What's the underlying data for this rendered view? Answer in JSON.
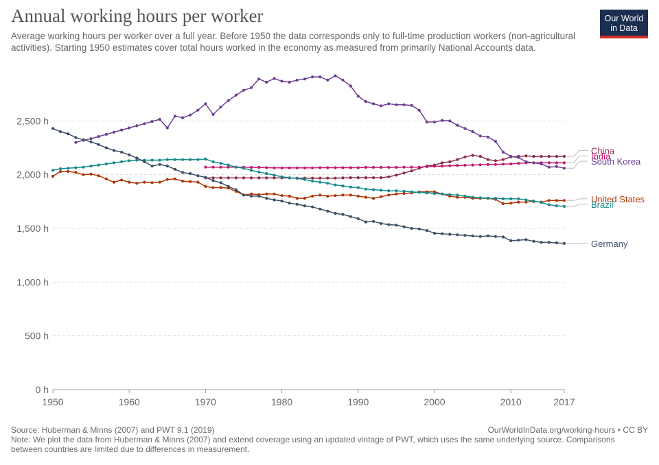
{
  "header": {
    "title": "Annual working hours per worker",
    "subtitle": "Average working hours per worker over a full year. Before 1950 the data corresponds only to full-time production workers (non-agricultural activities). Starting 1950 estimates cover total hours worked in the economy as measured from primarily National Accounts data.",
    "logo_line1": "Our World",
    "logo_line2": "in Data"
  },
  "footer": {
    "source": "Source: Huberman & Minns (2007) and PWT 9.1 (2019)",
    "url": "OurWorldInData.org/working-hours • CC BY",
    "note": "Note: We plot the data from Huberman & Minns (2007) and extend coverage using an updated vintage of PWT, which uses the same underlying source. Comparisons between countries are limited due to differences in measurement."
  },
  "colors": {
    "logo_bg": "#1a2e4f",
    "logo_accent": "#d12c2c"
  },
  "chart_data": {
    "type": "line",
    "title": "Annual working hours per worker",
    "xlim": [
      1950,
      2017
    ],
    "ylim": [
      0,
      3000
    ],
    "x_ticks": [
      1950,
      1960,
      1970,
      1980,
      1990,
      2000,
      2010,
      2017
    ],
    "x_tick_labels": [
      "1950",
      "1960",
      "1970",
      "1980",
      "1990",
      "2000",
      "2010",
      "2017"
    ],
    "y_ticks": [
      0,
      500,
      1000,
      1500,
      2000,
      2500
    ],
    "y_tick_labels": [
      "0 h",
      "500 h",
      "1,000 h",
      "1,500 h",
      "2,000 h",
      "2,500 h"
    ],
    "grid": "horizontal dashed",
    "legend": "right end labels",
    "series": [
      {
        "name": "China",
        "color": "#8c2c43",
        "start": 1970,
        "values": [
          1970,
          1970,
          1970,
          1970,
          1970,
          1970,
          1970,
          1970,
          1970,
          1970,
          1970,
          1970,
          1968,
          1968,
          1968,
          1968,
          1968,
          1968,
          1970,
          1972,
          1972,
          1972,
          1972,
          1972,
          1980,
          1995,
          2015,
          2035,
          2060,
          2080,
          2090,
          2110,
          2120,
          2140,
          2165,
          2180,
          2170,
          2140,
          2130,
          2140,
          2165,
          2170,
          2175,
          2170,
          2170,
          2170,
          2170,
          2170
        ]
      },
      {
        "name": "India",
        "color": "#c4156f",
        "start": 1970,
        "values": [
          2070,
          2070,
          2070,
          2070,
          2070,
          2070,
          2068,
          2068,
          2065,
          2063,
          2063,
          2063,
          2063,
          2063,
          2063,
          2065,
          2065,
          2065,
          2065,
          2065,
          2065,
          2068,
          2068,
          2068,
          2068,
          2068,
          2070,
          2070,
          2070,
          2075,
          2078,
          2080,
          2083,
          2085,
          2088,
          2090,
          2092,
          2095,
          2095,
          2098,
          2100,
          2105,
          2110,
          2110,
          2110,
          2110,
          2110,
          2110
        ]
      },
      {
        "name": "South Korea",
        "color": "#6d3e91",
        "start": 1953,
        "values": [
          2300,
          2320,
          2335,
          2355,
          2375,
          2395,
          2415,
          2435,
          2455,
          2475,
          2495,
          2515,
          2435,
          2545,
          2530,
          2555,
          2600,
          2660,
          2560,
          2630,
          2690,
          2740,
          2785,
          2810,
          2890,
          2860,
          2895,
          2870,
          2860,
          2880,
          2890,
          2910,
          2910,
          2880,
          2920,
          2880,
          2825,
          2730,
          2680,
          2660,
          2640,
          2660,
          2650,
          2650,
          2645,
          2600,
          2490,
          2490,
          2505,
          2500,
          2460,
          2430,
          2400,
          2360,
          2350,
          2310,
          2210,
          2170,
          2160,
          2120,
          2110,
          2100,
          2070,
          2075,
          2060
        ]
      },
      {
        "name": "United States",
        "color": "#b13507",
        "start": 1950,
        "values": [
          1985,
          2030,
          2030,
          2020,
          2000,
          2005,
          1990,
          1960,
          1930,
          1950,
          1930,
          1920,
          1930,
          1925,
          1930,
          1955,
          1960,
          1940,
          1935,
          1930,
          1890,
          1880,
          1880,
          1875,
          1845,
          1810,
          1820,
          1815,
          1820,
          1820,
          1805,
          1800,
          1780,
          1780,
          1800,
          1810,
          1800,
          1805,
          1810,
          1810,
          1800,
          1790,
          1780,
          1795,
          1810,
          1820,
          1825,
          1830,
          1840,
          1840,
          1840,
          1820,
          1800,
          1790,
          1790,
          1780,
          1780,
          1780,
          1770,
          1730,
          1735,
          1745,
          1745,
          1750,
          1745,
          1760,
          1760,
          1760
        ]
      },
      {
        "name": "Brazil",
        "color": "#158a8a",
        "start": 1950,
        "values": [
          2040,
          2055,
          2060,
          2065,
          2070,
          2080,
          2090,
          2100,
          2110,
          2120,
          2130,
          2135,
          2135,
          2135,
          2135,
          2140,
          2140,
          2140,
          2140,
          2140,
          2145,
          2120,
          2105,
          2090,
          2070,
          2060,
          2040,
          2025,
          2010,
          1995,
          1980,
          1970,
          1965,
          1955,
          1940,
          1930,
          1920,
          1905,
          1895,
          1885,
          1880,
          1865,
          1860,
          1855,
          1850,
          1850,
          1845,
          1840,
          1835,
          1830,
          1825,
          1820,
          1815,
          1810,
          1800,
          1790,
          1785,
          1780,
          1780,
          1775,
          1775,
          1775,
          1765,
          1755,
          1740,
          1720,
          1710,
          1705
        ]
      },
      {
        "name": "Germany",
        "color": "#3c4e66",
        "start": 1950,
        "values": [
          2430,
          2400,
          2380,
          2345,
          2325,
          2305,
          2280,
          2250,
          2225,
          2210,
          2185,
          2155,
          2120,
          2080,
          2095,
          2080,
          2050,
          2020,
          2010,
          1990,
          1975,
          1945,
          1925,
          1890,
          1860,
          1810,
          1800,
          1800,
          1780,
          1765,
          1755,
          1735,
          1725,
          1710,
          1700,
          1680,
          1660,
          1640,
          1630,
          1610,
          1590,
          1560,
          1565,
          1545,
          1535,
          1530,
          1515,
          1500,
          1495,
          1480,
          1455,
          1450,
          1445,
          1440,
          1435,
          1430,
          1425,
          1430,
          1425,
          1420,
          1385,
          1390,
          1395,
          1380,
          1370,
          1370,
          1365,
          1360
        ]
      }
    ],
    "end_labels": [
      {
        "name": "China",
        "y": 2225
      },
      {
        "name": "India",
        "y": 2175
      },
      {
        "name": "South Korea",
        "y": 2125
      },
      {
        "name": "United States",
        "y": 1775
      },
      {
        "name": "Brazil",
        "y": 1725
      },
      {
        "name": "Germany",
        "y": 1360
      }
    ]
  }
}
